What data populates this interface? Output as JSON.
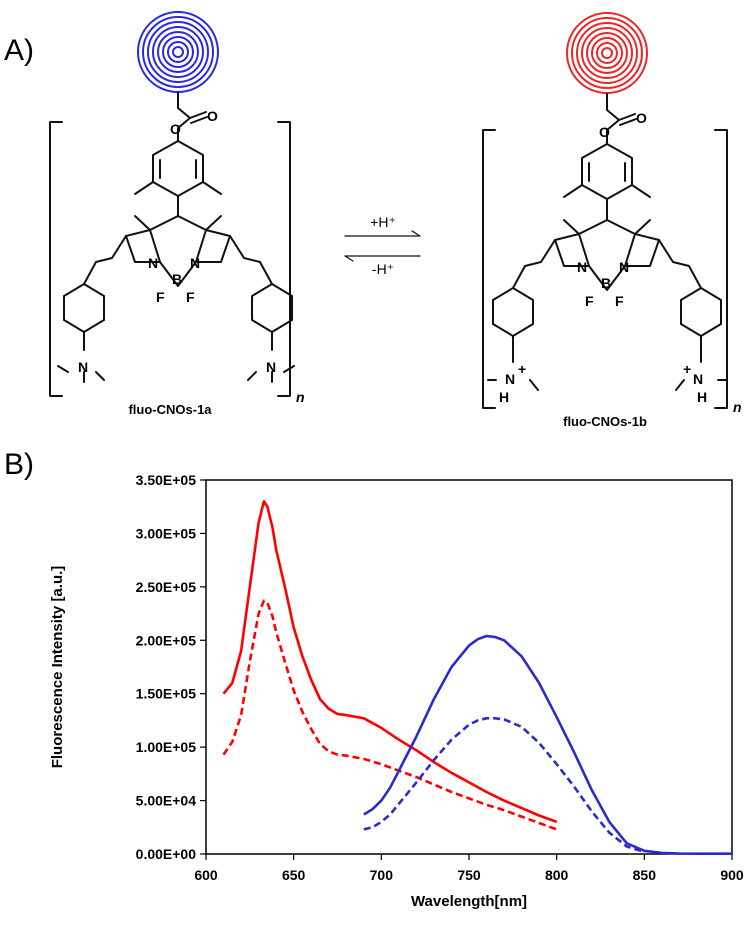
{
  "panels": {
    "a_label": "A)",
    "b_label": "B)"
  },
  "scheme": {
    "left_compound": "fluo-CNOs-1a",
    "right_compound": "fluo-CNOs-1b",
    "subscript_n": "n",
    "forward_arrow": "+H⁺",
    "reverse_arrow": "-H⁺",
    "atoms": {
      "N": "N",
      "B": "B",
      "F": "F",
      "H": "H",
      "plus": "+"
    },
    "colors": {
      "left_onion": "#2a2ae0",
      "right_onion": "#e8282a"
    }
  },
  "chart_data": {
    "type": "line",
    "title": "",
    "xlabel": "Wavelength[nm]",
    "ylabel": "Fluorescence Intensity [a.u.]",
    "xlim": [
      600,
      900
    ],
    "ylim": [
      0,
      350000
    ],
    "xticks": [
      "600",
      "650",
      "700",
      "750",
      "800",
      "850",
      "900"
    ],
    "yticks": [
      "0.00E+00",
      "5.00E+04",
      "1.00E+05",
      "1.50E+05",
      "2.00E+05",
      "2.50E+05",
      "3.00E+05",
      "3.50E+05"
    ],
    "grid": false,
    "legend": "none",
    "series": [
      {
        "color": "#ff0000",
        "dash": false,
        "x": [
          610,
          615,
          620,
          625,
          630,
          633,
          635,
          638,
          640,
          645,
          650,
          655,
          660,
          665,
          670,
          675,
          680,
          690,
          700,
          710,
          720,
          730,
          740,
          750,
          760,
          770,
          780,
          790,
          800
        ],
        "y": [
          150000,
          160000,
          190000,
          250000,
          310000,
          330000,
          325000,
          305000,
          285000,
          250000,
          212000,
          185000,
          163000,
          145000,
          136000,
          131000,
          130000,
          127000,
          118000,
          107000,
          97000,
          86000,
          76000,
          67000,
          58000,
          50000,
          43000,
          36000,
          30000
        ]
      },
      {
        "color": "#ff0000",
        "dash": true,
        "x": [
          610,
          615,
          620,
          625,
          630,
          633,
          635,
          638,
          640,
          645,
          650,
          655,
          660,
          665,
          670,
          675,
          680,
          690,
          700,
          710,
          720,
          730,
          740,
          750,
          760,
          770,
          780,
          790,
          800
        ],
        "y": [
          93000,
          105000,
          130000,
          180000,
          225000,
          237000,
          235000,
          222000,
          208000,
          180000,
          153000,
          133000,
          117000,
          103000,
          96000,
          93000,
          92000,
          89000,
          84000,
          78000,
          72000,
          65000,
          58000,
          52000,
          46000,
          41000,
          35000,
          29000,
          23000
        ]
      },
      {
        "color": "#2b2bcc",
        "dash": false,
        "x": [
          690,
          695,
          700,
          705,
          710,
          720,
          730,
          740,
          750,
          755,
          760,
          765,
          770,
          780,
          790,
          800,
          810,
          820,
          830,
          840,
          850,
          860,
          870,
          880,
          890,
          900
        ],
        "y": [
          37000,
          42000,
          50000,
          62000,
          78000,
          110000,
          145000,
          175000,
          195000,
          201000,
          204000,
          203000,
          200000,
          185000,
          160000,
          128000,
          95000,
          60000,
          30000,
          10000,
          3000,
          1000,
          500,
          300,
          300,
          300
        ]
      },
      {
        "color": "#2b2bcc",
        "dash": true,
        "x": [
          690,
          695,
          700,
          705,
          710,
          720,
          730,
          740,
          750,
          755,
          760,
          765,
          770,
          780,
          790,
          800,
          810,
          820,
          830,
          840,
          850
        ],
        "y": [
          23000,
          25000,
          30000,
          37000,
          47000,
          67000,
          88000,
          107000,
          121000,
          125000,
          127000,
          127000,
          126000,
          119000,
          104000,
          84000,
          63000,
          40000,
          20000,
          7000,
          2000
        ]
      }
    ]
  }
}
